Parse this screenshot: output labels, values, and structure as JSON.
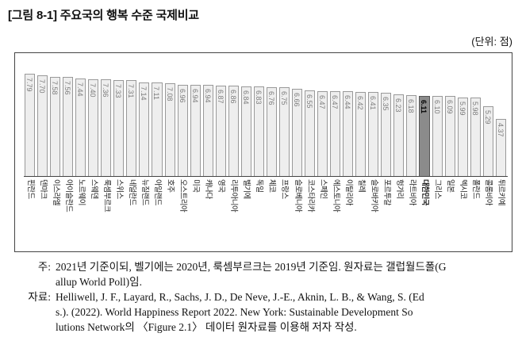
{
  "title": "[그림 8-1] 주요국의 행복 수준 국제비교",
  "unit_label": "(단위: 점)",
  "chart_data": {
    "type": "bar",
    "title": "주요국의 행복 수준 국제비교",
    "ylabel": "점",
    "ylim": [
      0,
      7.79
    ],
    "grid": false,
    "legend": false,
    "bar_color": "#eeeeee",
    "bar_border_color": "#999999",
    "highlight_category": "대한민국",
    "highlight_color": "#8b8b8b",
    "value_labels_rotated": true,
    "category_labels_rotated": true,
    "categories": [
      "핀란드",
      "덴마크",
      "이스라엘",
      "아이슬란드",
      "노르웨이",
      "스웨덴",
      "룩셈부르크",
      "스위스",
      "네덜란드",
      "뉴질랜드",
      "아일랜드",
      "호주",
      "오스트리아",
      "미국",
      "캐나다",
      "영국",
      "리투아니아",
      "벨기에",
      "독일",
      "체코",
      "프랑스",
      "슬로베니아",
      "코스타리카",
      "스페인",
      "에스토니아",
      "이탈리아",
      "칠레",
      "슬로바키아",
      "포르투갈",
      "헝가리",
      "라트비아",
      "대한민국",
      "그리스",
      "일본",
      "멕시코",
      "폴란드",
      "콜롬비아",
      "튀르키예"
    ],
    "values": [
      7.79,
      7.7,
      7.58,
      7.56,
      7.44,
      7.4,
      7.36,
      7.33,
      7.31,
      7.14,
      7.11,
      7.08,
      6.96,
      6.94,
      6.94,
      6.87,
      6.86,
      6.84,
      6.83,
      6.76,
      6.75,
      6.66,
      6.55,
      6.47,
      6.47,
      6.44,
      6.42,
      6.41,
      6.35,
      6.23,
      6.18,
      6.11,
      6.1,
      6.09,
      5.99,
      5.98,
      5.29,
      4.37
    ]
  },
  "notes": {
    "note_label": "주:",
    "note_lines": [
      "2021년 기준이되, 벨기에는 2020년, 룩셈부르크는 2019년 기준임. 원자료는 갤럽월드폴(G",
      "allup World Poll)임."
    ],
    "source_label": "자료:",
    "source_lines": [
      "Helliwell, J. F., Layard, R., Sachs, J. D., De Neve, J.-E., Aknin, L. B., & Wang, S. (Ed",
      "s.). (2022). World Happiness Report 2022. New York: Sustainable Development So",
      "lutions Network의 〈Figure 2.1〉 데이터 원자료를 이용해 저자 작성."
    ]
  }
}
